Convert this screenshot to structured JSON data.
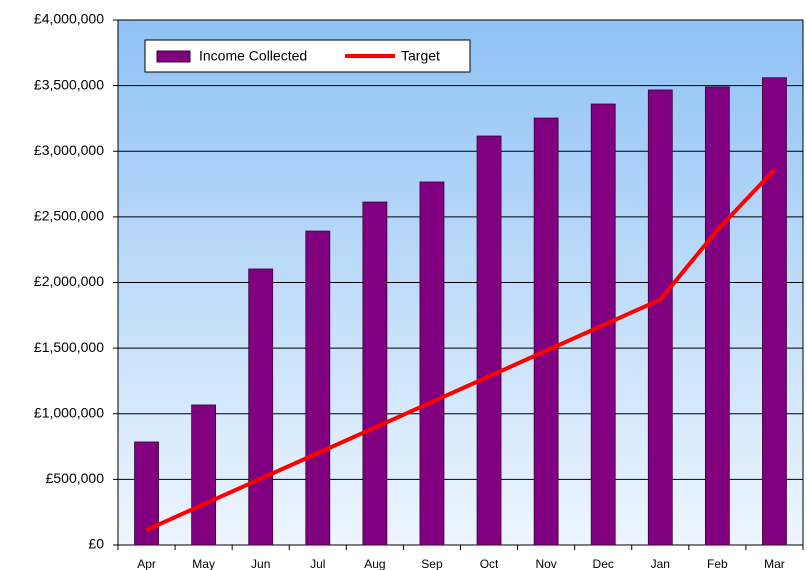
{
  "chart_data": {
    "type": "bar_line",
    "categories": [
      "Apr",
      "May",
      "Jun",
      "Jul",
      "Aug",
      "Sep",
      "Oct",
      "Nov",
      "Dec",
      "Jan",
      "Feb",
      "Mar"
    ],
    "series": [
      {
        "name": "Income Collected",
        "type": "bar",
        "color": "#800080",
        "values": [
          785000,
          1067000,
          2103000,
          2392000,
          2613000,
          2766000,
          3116000,
          3253000,
          3360000,
          3467000,
          3490000,
          3560000
        ]
      },
      {
        "name": "Target",
        "type": "line",
        "color": "#ff0000",
        "values": [
          115000,
          310000,
          505000,
          700000,
          895000,
          1090000,
          1285000,
          1480000,
          1675000,
          1870000,
          2400000,
          2860000
        ]
      }
    ],
    "ylim": [
      0,
      4000000
    ],
    "yticks": [
      {
        "value": 0,
        "label": "£0"
      },
      {
        "value": 500000,
        "label": "£500,000"
      },
      {
        "value": 1000000,
        "label": "£1,000,000"
      },
      {
        "value": 1500000,
        "label": "£1,500,000"
      },
      {
        "value": 2000000,
        "label": "£2,000,000"
      },
      {
        "value": 2500000,
        "label": "£2,500,000"
      },
      {
        "value": 3000000,
        "label": "£3,000,000"
      },
      {
        "value": 3500000,
        "label": "£3,500,000"
      },
      {
        "value": 4000000,
        "label": "£4,000,000"
      }
    ],
    "grid": true,
    "legend": "top-left"
  }
}
